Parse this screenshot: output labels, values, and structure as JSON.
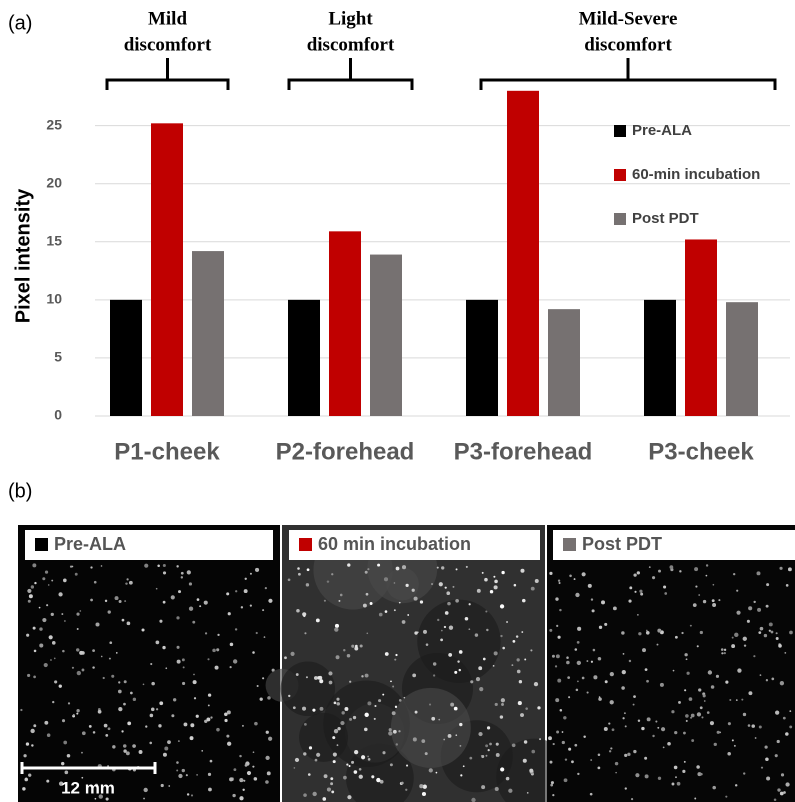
{
  "chart_data": {
    "type": "bar",
    "panel_label": "(a)",
    "ylabel": "Pixel intensity",
    "categories": [
      "P1-cheek",
      "P2-forehead",
      "P3-forehead",
      "P3-cheek"
    ],
    "series": [
      {
        "name": "Pre-ALA",
        "color": "#000000",
        "values": [
          10,
          10,
          10,
          10
        ]
      },
      {
        "name": "60-min incubation",
        "color": "#c00000",
        "values": [
          25.2,
          15.9,
          28.0,
          15.2
        ]
      },
      {
        "name": "Post PDT",
        "color": "#767171",
        "values": [
          14.2,
          13.9,
          9.2,
          9.8
        ]
      }
    ],
    "ylim": [
      0,
      28.5
    ],
    "yticks": [
      0,
      5,
      10,
      15,
      20,
      25
    ],
    "grid": true,
    "legend": "right",
    "annotations": [
      {
        "lines": [
          "Mild",
          "discomfort"
        ]
      },
      {
        "lines": [
          "Light",
          "discomfort"
        ]
      },
      {
        "lines": [
          "Mild-Severe",
          "discomfort"
        ]
      }
    ]
  },
  "panel_b": {
    "panel_label": "(b)",
    "images": [
      {
        "label": "Pre-ALA",
        "color": "#000000"
      },
      {
        "label": "60 min incubation",
        "color": "#c00000"
      },
      {
        "label": "Post PDT",
        "color": "#767171"
      }
    ],
    "scale_bar": "12 mm"
  }
}
